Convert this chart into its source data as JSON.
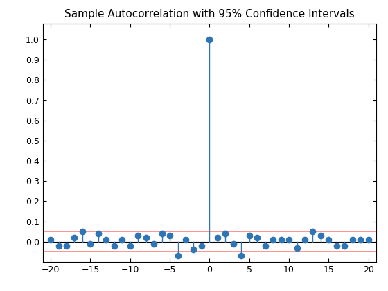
{
  "title": "Sample Autocorrelation with 95% Confidence Intervals",
  "xlim": [
    -21,
    21
  ],
  "ylim": [
    -0.1,
    1.08
  ],
  "xticks": [
    -20,
    -15,
    -10,
    -5,
    0,
    5,
    10,
    15,
    20
  ],
  "yticks": [
    0.0,
    0.1,
    0.2,
    0.3,
    0.4,
    0.5,
    0.6,
    0.7,
    0.8,
    0.9,
    1.0
  ],
  "conf_interval": 0.05,
  "stem_color": "#2E75B6",
  "conf_color": "#FF8080",
  "background_color": "#ffffff",
  "lags": [
    -20,
    -19,
    -18,
    -17,
    -16,
    -15,
    -14,
    -13,
    -12,
    -11,
    -10,
    -9,
    -8,
    -7,
    -6,
    -5,
    -4,
    -3,
    -2,
    -1,
    0,
    1,
    2,
    3,
    4,
    5,
    6,
    7,
    8,
    9,
    10,
    11,
    12,
    13,
    14,
    15,
    16,
    17,
    18,
    19,
    20
  ],
  "acf": [
    0.01,
    -0.02,
    -0.02,
    0.02,
    0.05,
    -0.01,
    0.04,
    0.01,
    -0.02,
    0.01,
    -0.02,
    0.03,
    0.02,
    -0.01,
    0.04,
    0.03,
    -0.07,
    0.01,
    -0.04,
    -0.02,
    1.0,
    0.02,
    0.04,
    -0.01,
    -0.07,
    0.03,
    0.02,
    -0.02,
    0.01,
    0.01,
    0.01,
    -0.03,
    0.01,
    0.05,
    0.03,
    0.01,
    -0.02,
    -0.02,
    0.01,
    0.01,
    0.01
  ],
  "figsize": [
    5.6,
    4.2
  ],
  "dpi": 100,
  "title_fontsize": 11,
  "tick_labelsize": 9,
  "marker_size": 7,
  "stem_linewidth": 1.0,
  "conf_linewidth": 1.2,
  "baseline_linewidth": 0.8
}
